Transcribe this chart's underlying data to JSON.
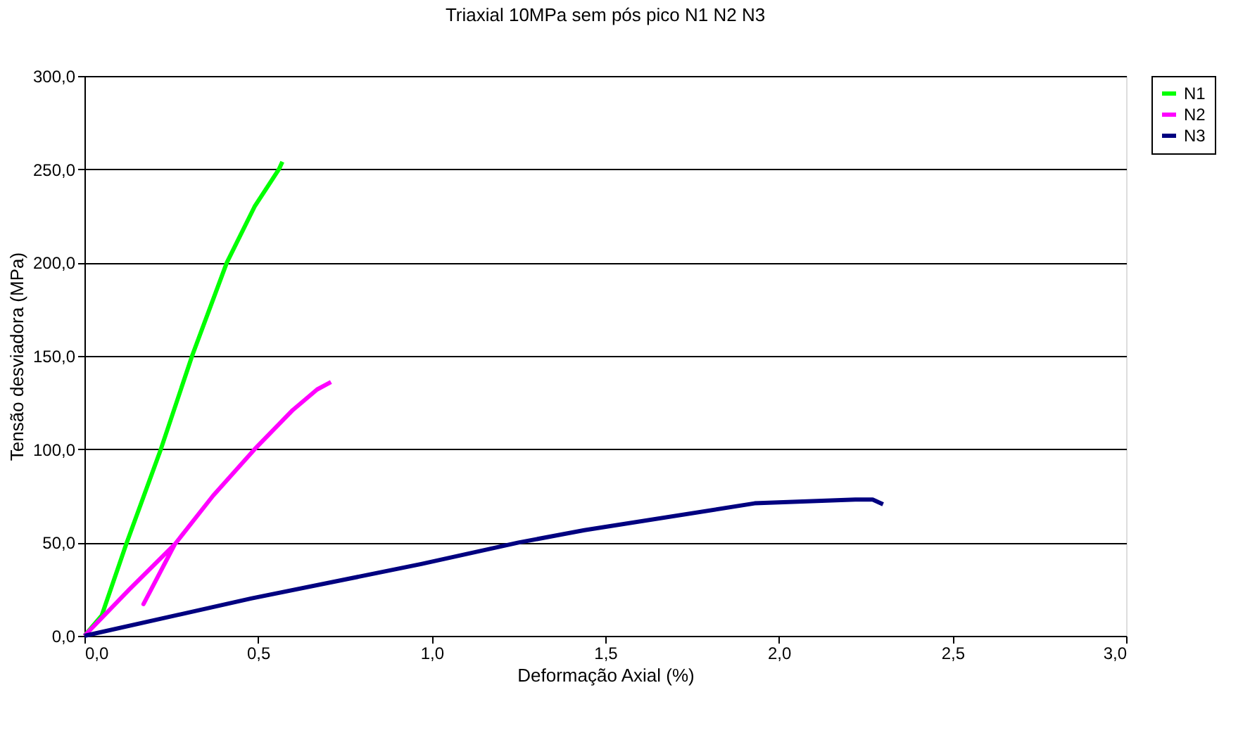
{
  "chart_data": {
    "type": "line",
    "title": "Triaxial 10MPa sem pós pico N1 N2 N3",
    "xlabel": "Deformação Axial (%)",
    "ylabel": "Tensão desviadora (MPa)",
    "xlim": [
      0,
      3
    ],
    "ylim": [
      0,
      300
    ],
    "xticks": [
      {
        "value": 0,
        "label": "0,0"
      },
      {
        "value": 0.5,
        "label": "0,5"
      },
      {
        "value": 1,
        "label": "1,0"
      },
      {
        "value": 1.5,
        "label": "1,5"
      },
      {
        "value": 2,
        "label": "2,0"
      },
      {
        "value": 2.5,
        "label": "2,5"
      },
      {
        "value": 3,
        "label": "3,0"
      }
    ],
    "yticks": [
      {
        "value": 0,
        "label": "0,0"
      },
      {
        "value": 50,
        "label": "50,0"
      },
      {
        "value": 100,
        "label": "100,0"
      },
      {
        "value": 150,
        "label": "150,0"
      },
      {
        "value": 200,
        "label": "200,0"
      },
      {
        "value": 250,
        "label": "250,0"
      },
      {
        "value": 300,
        "label": "300,0"
      }
    ],
    "grid": "y",
    "legend": "right",
    "marker": "none",
    "line_style": "solid",
    "series": [
      {
        "name": "N1",
        "color": "#00ff00",
        "x": [
          0,
          0.05,
          0.12,
          0.22,
          0.31,
          0.41,
          0.49,
          0.56,
          0.57
        ],
        "values": [
          0,
          11,
          49,
          100,
          150,
          200,
          230,
          250,
          254
        ]
      },
      {
        "name": "N2",
        "color": "#ff00ff",
        "x": [
          0,
          0.13,
          0.26,
          0.17,
          0.26,
          0.37,
          0.49,
          0.6,
          0.67,
          0.71
        ],
        "values": [
          0,
          25,
          49,
          17,
          49,
          75,
          100,
          121,
          132,
          136
        ]
      },
      {
        "name": "N3",
        "color": "#000080",
        "x": [
          0,
          0.48,
          0.97,
          1.25,
          1.44,
          1.93,
          2.22,
          2.27,
          2.3
        ],
        "values": [
          0,
          20,
          38.5,
          50,
          56.6,
          71,
          73,
          73,
          70.5
        ]
      }
    ]
  }
}
